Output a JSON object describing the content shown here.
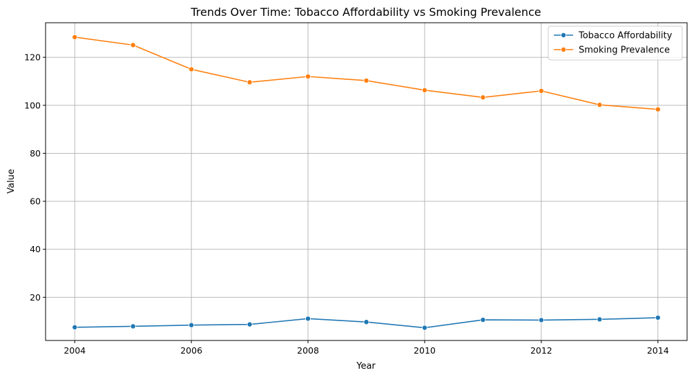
{
  "colors": {
    "series_1": "#1f77b4",
    "series_2": "#ff7f0e",
    "grid": "#b0b0b0",
    "axes": "#000000",
    "legend_border": "#cccccc"
  },
  "chart_data": {
    "type": "line",
    "title": "Trends Over Time: Tobacco Affordability vs Smoking Prevalence",
    "xlabel": "Year",
    "ylabel": "Value",
    "x": [
      2004,
      2005,
      2006,
      2007,
      2008,
      2009,
      2010,
      2011,
      2012,
      2013,
      2014
    ],
    "xticks": [
      2004,
      2006,
      2008,
      2010,
      2012,
      2014
    ],
    "yticks": [
      20,
      40,
      60,
      80,
      100,
      120
    ],
    "xlim": [
      2003.5,
      2014.5
    ],
    "ylim": [
      2.0,
      134.4
    ],
    "grid": true,
    "legend_position": "top-right",
    "marker": "circle",
    "series": [
      {
        "name": "Tobacco Affordability",
        "color": "#1f77b4",
        "values": [
          7.5,
          7.9,
          8.4,
          8.7,
          11.1,
          9.7,
          7.3,
          10.6,
          10.5,
          10.8,
          11.5
        ]
      },
      {
        "name": "Smoking Prevalence",
        "color": "#ff7f0e",
        "values": [
          128.4,
          125.1,
          115.0,
          109.6,
          112.0,
          110.3,
          106.3,
          103.3,
          106.0,
          100.2,
          98.3
        ]
      }
    ]
  }
}
